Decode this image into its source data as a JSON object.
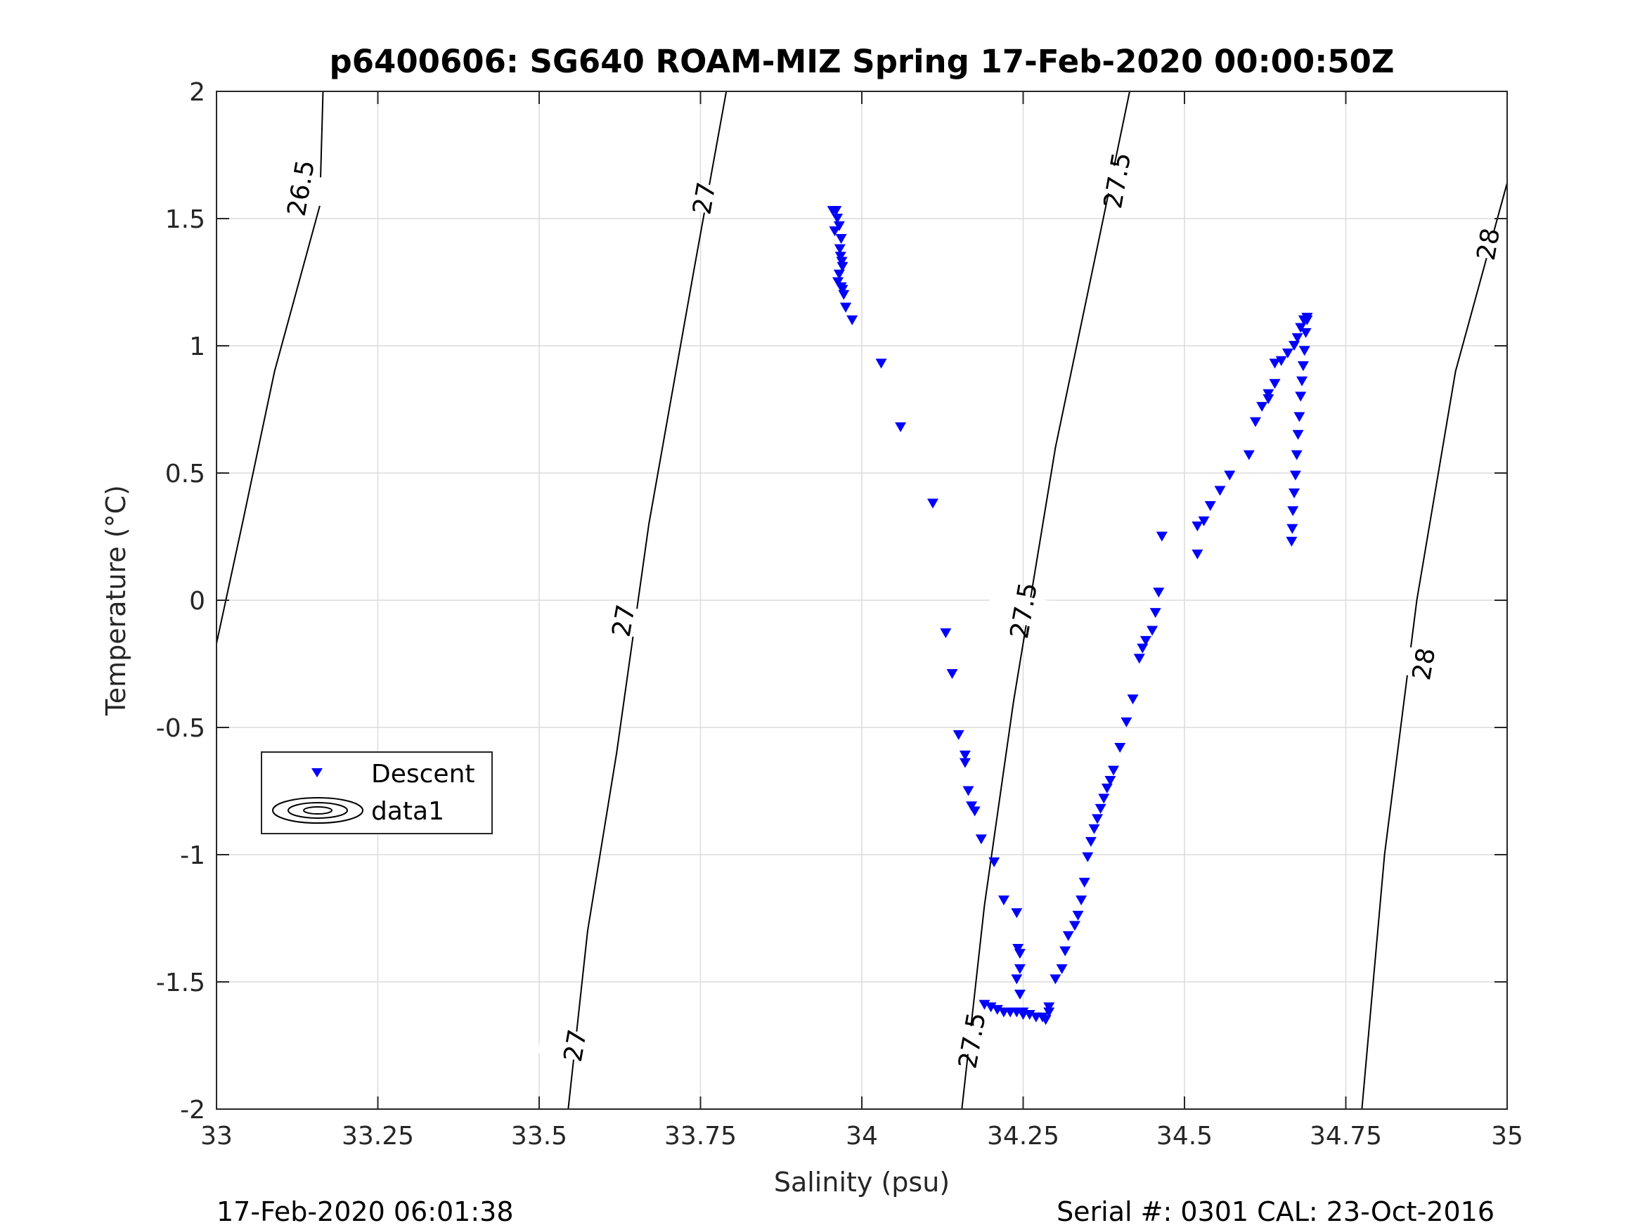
{
  "chart_data": {
    "type": "scatter",
    "title": "p6400606: SG640 ROAM-MIZ Spring 17-Feb-2020 00:00:50Z",
    "xlabel": "Salinity (psu)",
    "ylabel": "Temperature (°C)",
    "xlim": [
      33,
      35
    ],
    "ylim": [
      -2,
      2
    ],
    "xticks": [
      "33",
      "33.25",
      "33.5",
      "33.75",
      "34",
      "34.25",
      "34.5",
      "34.75",
      "35"
    ],
    "yticks": [
      "-2",
      "-1.5",
      "-1",
      "-0.5",
      "0",
      "0.5",
      "1",
      "1.5",
      "2"
    ],
    "grid": true,
    "legend_position": "lower-left",
    "legend": [
      {
        "name": "Descent",
        "marker": "triangle-down",
        "color": "#0000ff"
      },
      {
        "name": "data1",
        "marker": "contour",
        "color": "#000000"
      }
    ],
    "contours": [
      {
        "level": "26.5",
        "points": [
          [
            33.0,
            -0.17
          ],
          [
            33.04,
            0.3
          ],
          [
            33.09,
            0.9
          ],
          [
            33.16,
            1.55
          ],
          [
            33.165,
            2.0
          ]
        ],
        "labels": [
          {
            "text": "26.5",
            "x": 33.13,
            "y": 1.62
          }
        ]
      },
      {
        "level": "27",
        "points": [
          [
            33.545,
            -2.0
          ],
          [
            33.575,
            -1.3
          ],
          [
            33.62,
            -0.6
          ],
          [
            33.67,
            0.3
          ],
          [
            33.74,
            1.3
          ],
          [
            33.79,
            2.0
          ]
        ],
        "labels": [
          {
            "text": "27",
            "x": 33.555,
            "y": -1.75
          },
          {
            "text": "27",
            "x": 33.63,
            "y": -0.08
          },
          {
            "text": "27",
            "x": 33.755,
            "y": 1.58
          }
        ]
      },
      {
        "level": "27.5",
        "points": [
          [
            34.155,
            -2.0
          ],
          [
            34.19,
            -1.2
          ],
          [
            34.235,
            -0.4
          ],
          [
            34.3,
            0.6
          ],
          [
            34.37,
            1.45
          ],
          [
            34.415,
            2.0
          ]
        ],
        "labels": [
          {
            "text": "27.5",
            "x": 34.17,
            "y": -1.73
          },
          {
            "text": "27.5",
            "x": 34.25,
            "y": -0.04
          },
          {
            "text": "27.5",
            "x": 34.395,
            "y": 1.65
          }
        ]
      },
      {
        "level": "28",
        "points": [
          [
            34.775,
            -2.0
          ],
          [
            34.81,
            -1.0
          ],
          [
            34.86,
            0.0
          ],
          [
            34.92,
            0.9
          ],
          [
            35.0,
            1.64
          ]
        ],
        "labels": [
          {
            "text": "28",
            "x": 34.87,
            "y": -0.25
          },
          {
            "text": "28",
            "x": 34.97,
            "y": 1.4
          }
        ]
      }
    ],
    "series": [
      {
        "name": "Descent",
        "color": "#0000ff",
        "marker": "triangle-down",
        "x": [
          33.955,
          33.96,
          33.962,
          33.958,
          33.965,
          33.968,
          33.966,
          33.967,
          33.969,
          33.97,
          33.965,
          33.963,
          33.968,
          33.97,
          33.972,
          33.975,
          33.975,
          33.985,
          34.03,
          34.06,
          34.11,
          34.13,
          34.14,
          34.15,
          34.16,
          34.16,
          34.165,
          34.17,
          34.175,
          34.185,
          34.205,
          34.22,
          34.24,
          34.242,
          34.245,
          34.245,
          34.24,
          34.245,
          34.25,
          34.19,
          34.2,
          34.21,
          34.22,
          34.23,
          34.24,
          34.25,
          34.26,
          34.27,
          34.28,
          34.285,
          34.29,
          34.29,
          34.3,
          34.31,
          34.315,
          34.32,
          34.33,
          34.335,
          34.34,
          34.345,
          34.35,
          34.355,
          34.36,
          34.365,
          34.37,
          34.375,
          34.38,
          34.385,
          34.39,
          34.4,
          34.41,
          34.42,
          34.43,
          34.435,
          34.44,
          34.45,
          34.455,
          34.46,
          34.465,
          34.52,
          34.52,
          34.53,
          34.54,
          34.555,
          34.57,
          34.6,
          34.61,
          34.62,
          34.63,
          34.63,
          34.64,
          34.64,
          34.65,
          34.66,
          34.67,
          34.675,
          34.68,
          34.685,
          34.69,
          34.69,
          34.69,
          34.688,
          34.686,
          34.684,
          34.682,
          34.68,
          34.678,
          34.676,
          34.674,
          34.672,
          34.67,
          34.668,
          34.667,
          34.666
        ],
        "y": [
          1.53,
          1.53,
          1.5,
          1.45,
          1.47,
          1.42,
          1.38,
          1.35,
          1.33,
          1.31,
          1.28,
          1.25,
          1.23,
          1.22,
          1.2,
          1.15,
          1.15,
          1.1,
          0.93,
          0.68,
          0.38,
          -0.13,
          -0.29,
          -0.53,
          -0.61,
          -0.64,
          -0.75,
          -0.81,
          -0.83,
          -0.94,
          -1.03,
          -1.18,
          -1.23,
          -1.37,
          -1.39,
          -1.45,
          -1.49,
          -1.55,
          -1.62,
          -1.59,
          -1.6,
          -1.61,
          -1.62,
          -1.62,
          -1.62,
          -1.63,
          -1.63,
          -1.64,
          -1.64,
          -1.65,
          -1.62,
          -1.6,
          -1.49,
          -1.45,
          -1.38,
          -1.32,
          -1.28,
          -1.24,
          -1.18,
          -1.11,
          -1.01,
          -0.95,
          -0.9,
          -0.86,
          -0.82,
          -0.78,
          -0.74,
          -0.71,
          -0.67,
          -0.58,
          -0.48,
          -0.39,
          -0.23,
          -0.19,
          -0.16,
          -0.12,
          -0.05,
          0.03,
          0.25,
          0.18,
          0.29,
          0.31,
          0.37,
          0.43,
          0.49,
          0.57,
          0.7,
          0.76,
          0.79,
          0.81,
          0.85,
          0.93,
          0.94,
          0.97,
          1.0,
          1.03,
          1.07,
          1.1,
          1.11,
          1.11,
          1.1,
          1.05,
          0.98,
          0.92,
          0.86,
          0.8,
          0.72,
          0.65,
          0.57,
          0.49,
          0.42,
          0.35,
          0.28,
          0.23
        ]
      }
    ]
  },
  "footer": {
    "left": "17-Feb-2020 06:01:38",
    "right": "Serial #: 0301  CAL: 23-Oct-2016"
  }
}
